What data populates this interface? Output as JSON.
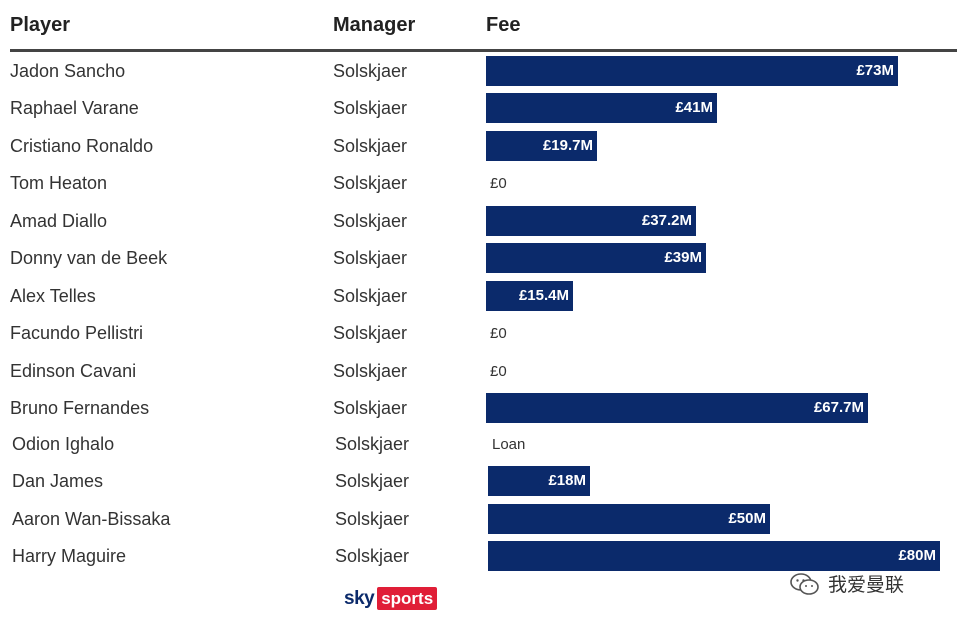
{
  "headers": {
    "player": "Player",
    "manager": "Manager",
    "fee": "Fee"
  },
  "chart_data": {
    "type": "bar",
    "orientation": "horizontal",
    "columns": [
      "Player",
      "Manager",
      "Fee"
    ],
    "rows": [
      {
        "player": "Jadon Sancho",
        "manager": "Solskjaer",
        "label": "£73M",
        "value": 73
      },
      {
        "player": "Raphael Varane",
        "manager": "Solskjaer",
        "label": "£41M",
        "value": 41
      },
      {
        "player": "Cristiano Ronaldo",
        "manager": "Solskjaer",
        "label": "£19.7M",
        "value": 19.7
      },
      {
        "player": "Tom Heaton",
        "manager": "Solskjaer",
        "label": "£0",
        "value": 0
      },
      {
        "player": "Amad Diallo",
        "manager": "Solskjaer",
        "label": "£37.2M",
        "value": 37.2
      },
      {
        "player": "Donny van de Beek",
        "manager": "Solskjaer",
        "label": "£39M",
        "value": 39
      },
      {
        "player": "Alex Telles",
        "manager": "Solskjaer",
        "label": "£15.4M",
        "value": 15.4
      },
      {
        "player": "Facundo Pellistri",
        "manager": "Solskjaer",
        "label": "£0",
        "value": 0
      },
      {
        "player": "Edinson Cavani",
        "manager": "Solskjaer",
        "label": "£0",
        "value": 0
      },
      {
        "player": "Bruno Fernandes",
        "manager": "Solskjaer",
        "label": "£67.7M",
        "value": 67.7
      },
      {
        "player": "Odion Ighalo",
        "manager": "Solskjaer",
        "label": "Loan",
        "value": null
      },
      {
        "player": "Dan James",
        "manager": "Solskjaer",
        "label": "£18M",
        "value": 18
      },
      {
        "player": "Aaron Wan-Bissaka",
        "manager": "Solskjaer",
        "label": "£50M",
        "value": 50
      },
      {
        "player": "Harry Maguire",
        "manager": "Solskjaer",
        "label": "£80M",
        "value": 80
      }
    ],
    "bar_color": "#0b2a6b"
  },
  "logo": {
    "brand": "sky",
    "product": "sports",
    "brand_color": "#0b2a6b",
    "product_color": "#e01e37"
  },
  "watermark": {
    "text": "我爱曼联",
    "icon": "wechat-icon"
  }
}
